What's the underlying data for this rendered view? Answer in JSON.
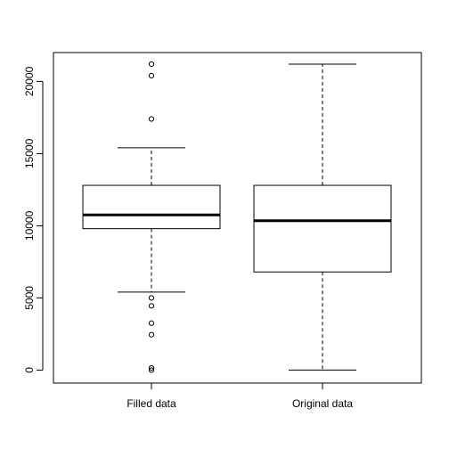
{
  "chart_data": {
    "type": "boxplot",
    "title": "",
    "xlabel": "",
    "ylabel": "",
    "ylim": [
      -900,
      22000
    ],
    "yticks": [
      0,
      5000,
      10000,
      15000,
      20000
    ],
    "ytick_labels": [
      "0",
      "5000",
      "10000",
      "15000",
      "20000"
    ],
    "grid": false,
    "series": [
      {
        "name": "Filled data",
        "whisker_low": 5400,
        "q1": 9800,
        "median": 10750,
        "q3": 12800,
        "whisker_high": 15400,
        "outliers": [
          21200,
          20400,
          17400,
          5000,
          4450,
          3250,
          2450,
          150,
          0
        ]
      },
      {
        "name": "Original data",
        "whisker_low": 0,
        "q1": 6800,
        "median": 10350,
        "q3": 12800,
        "whisker_high": 21200,
        "outliers": []
      }
    ]
  }
}
